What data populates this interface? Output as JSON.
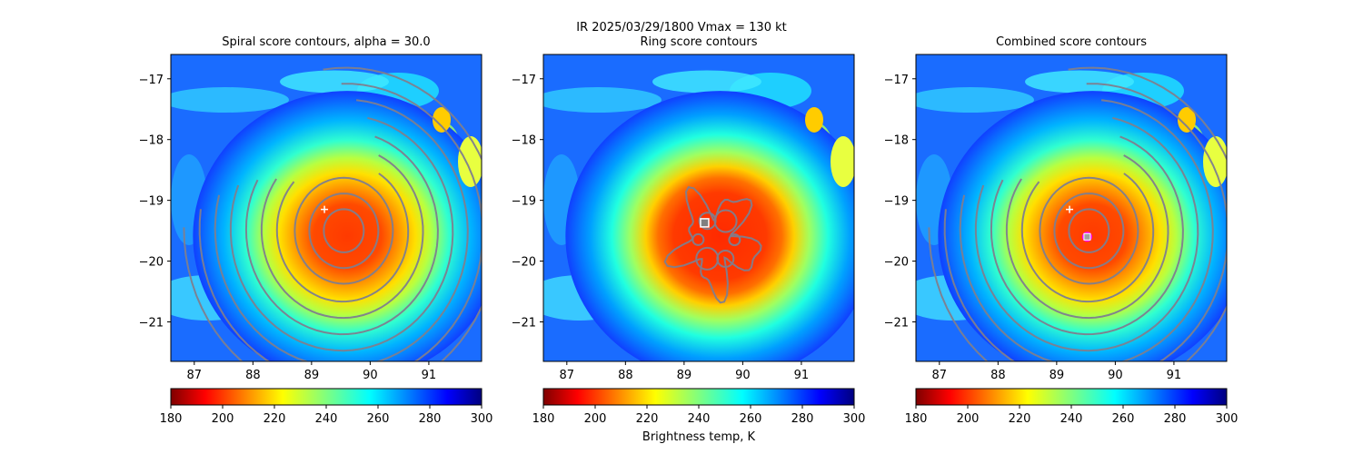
{
  "figure": {
    "suptitle_line1": "IR  2025/03/29/1800    Vmax = 130 kt",
    "colorbar_label": "Brightness temp, K"
  },
  "chart_data": [
    {
      "type": "heatmap",
      "title": "Spiral score contours, alpha = 30.0",
      "xlim": [
        86.6,
        91.9
      ],
      "ylim": [
        -21.65,
        -16.6
      ],
      "xticks": [
        87,
        88,
        89,
        90,
        91
      ],
      "yticks": [
        -17,
        -18,
        -19,
        -20,
        -21
      ],
      "xtick_labels": [
        "87",
        "88",
        "89",
        "90",
        "91"
      ],
      "ytick_labels": [
        "−17",
        "−18",
        "−19",
        "−20",
        "−21"
      ],
      "eye_center": [
        89.55,
        -19.65
      ],
      "markers": [
        {
          "kind": "plus",
          "color": "#ffffff",
          "x": 89.22,
          "y": -19.15
        }
      ],
      "contours": "spiral",
      "colorbar": {
        "ticks": [
          180,
          200,
          220,
          240,
          260,
          280,
          300
        ],
        "range": [
          180,
          300
        ],
        "cmap": "jet_r"
      }
    },
    {
      "type": "heatmap",
      "title": "Ring score contours",
      "xlim": [
        86.6,
        91.9
      ],
      "ylim": [
        -21.65,
        -16.6
      ],
      "xticks": [
        87,
        88,
        89,
        90,
        91
      ],
      "yticks": [
        -17,
        -18,
        -19,
        -20,
        -21
      ],
      "xtick_labels": [
        "87",
        "88",
        "89",
        "90",
        "91"
      ],
      "ytick_labels": [
        "−17",
        "−18",
        "−19",
        "−20",
        "−21"
      ],
      "eye_center": [
        89.55,
        -19.65
      ],
      "markers": [
        {
          "kind": "square",
          "color": "#ffffff",
          "x": 89.35,
          "y": -19.37
        }
      ],
      "contours": "ring",
      "colorbar": {
        "ticks": [
          180,
          200,
          220,
          240,
          260,
          280,
          300
        ],
        "range": [
          180,
          300
        ],
        "cmap": "jet_r"
      }
    },
    {
      "type": "heatmap",
      "title": "Combined score contours",
      "xlim": [
        86.6,
        91.9
      ],
      "ylim": [
        -21.65,
        -16.6
      ],
      "xticks": [
        87,
        88,
        89,
        90,
        91
      ],
      "yticks": [
        -17,
        -18,
        -19,
        -20,
        -21
      ],
      "xtick_labels": [
        "87",
        "88",
        "89",
        "90",
        "91"
      ],
      "ytick_labels": [
        "−17",
        "−18",
        "−19",
        "−20",
        "−21"
      ],
      "eye_center": [
        89.55,
        -19.65
      ],
      "markers": [
        {
          "kind": "plus",
          "color": "#ffffff",
          "x": 89.22,
          "y": -19.15
        },
        {
          "kind": "circle",
          "color": "#ff00ff",
          "x": 89.52,
          "y": -19.6
        }
      ],
      "contours": "spiral",
      "colorbar": {
        "ticks": [
          180,
          200,
          220,
          240,
          260,
          280,
          300
        ],
        "range": [
          180,
          300
        ],
        "cmap": "jet_r"
      }
    }
  ]
}
